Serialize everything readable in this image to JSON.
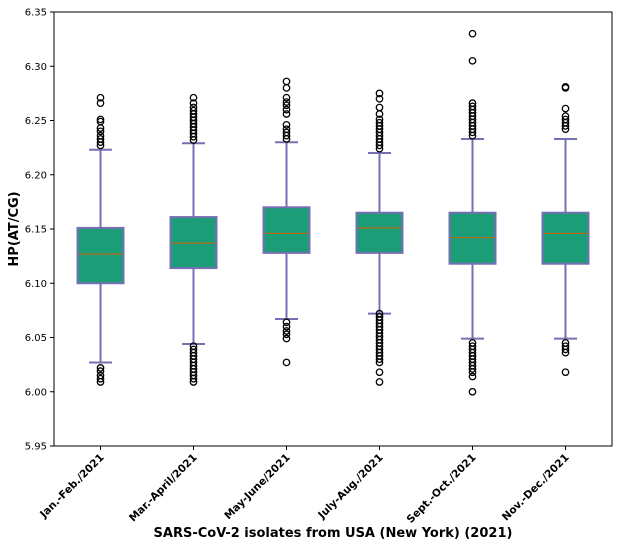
{
  "chart_data": {
    "type": "boxplot",
    "title": "",
    "xlabel": "SARS-CoV-2 isolates from USA (New York) (2021)",
    "ylabel": "HP(AT/CG)",
    "ylim": [
      5.95,
      6.35
    ],
    "yticks": [
      5.95,
      6.0,
      6.05,
      6.1,
      6.15,
      6.2,
      6.25,
      6.3,
      6.35
    ],
    "ytick_labels": [
      "5.95",
      "6.00",
      "6.05",
      "6.10",
      "6.15",
      "6.20",
      "6.25",
      "6.30",
      "6.35"
    ],
    "categories": [
      "Jan.-Feb./2021",
      "Mar.-April/2021",
      "May-June/2021",
      "July-Aug./2021",
      "Sept.-Oct./2021",
      "Nov.-Dec./2021"
    ],
    "boxes": [
      {
        "q1": 6.1,
        "median": 6.127,
        "q3": 6.151,
        "whisker_low": 6.027,
        "whisker_high": 6.223,
        "outliers": [
          6.009,
          6.012,
          6.015,
          6.019,
          6.022,
          6.227,
          6.23,
          6.233,
          6.236,
          6.24,
          6.243,
          6.249,
          6.251,
          6.266,
          6.271
        ]
      },
      {
        "q1": 6.114,
        "median": 6.137,
        "q3": 6.161,
        "whisker_low": 6.044,
        "whisker_high": 6.229,
        "outliers": [
          6.009,
          6.012,
          6.015,
          6.018,
          6.021,
          6.024,
          6.027,
          6.03,
          6.033,
          6.036,
          6.039,
          6.042,
          6.232,
          6.235,
          6.238,
          6.241,
          6.244,
          6.247,
          6.25,
          6.253,
          6.256,
          6.259,
          6.262,
          6.266,
          6.271
        ]
      },
      {
        "q1": 6.128,
        "median": 6.146,
        "q3": 6.17,
        "whisker_low": 6.067,
        "whisker_high": 6.23,
        "outliers": [
          6.027,
          6.049,
          6.053,
          6.056,
          6.06,
          6.064,
          6.233,
          6.236,
          6.239,
          6.242,
          6.246,
          6.256,
          6.26,
          6.264,
          6.267,
          6.271,
          6.28,
          6.286
        ]
      },
      {
        "q1": 6.128,
        "median": 6.151,
        "q3": 6.165,
        "whisker_low": 6.072,
        "whisker_high": 6.22,
        "outliers": [
          6.009,
          6.018,
          6.027,
          6.03,
          6.033,
          6.036,
          6.039,
          6.042,
          6.045,
          6.048,
          6.051,
          6.054,
          6.057,
          6.06,
          6.063,
          6.066,
          6.069,
          6.072,
          6.224,
          6.227,
          6.23,
          6.233,
          6.236,
          6.239,
          6.242,
          6.245,
          6.248,
          6.251,
          6.256,
          6.262,
          6.27,
          6.275
        ]
      },
      {
        "q1": 6.118,
        "median": 6.142,
        "q3": 6.165,
        "whisker_low": 6.049,
        "whisker_high": 6.233,
        "outliers": [
          6.0,
          6.014,
          6.018,
          6.021,
          6.024,
          6.027,
          6.03,
          6.033,
          6.036,
          6.039,
          6.042,
          6.045,
          6.236,
          6.239,
          6.242,
          6.245,
          6.248,
          6.251,
          6.254,
          6.257,
          6.26,
          6.263,
          6.266,
          6.305,
          6.33
        ]
      },
      {
        "q1": 6.118,
        "median": 6.146,
        "q3": 6.165,
        "whisker_low": 6.049,
        "whisker_high": 6.233,
        "outliers": [
          6.018,
          6.036,
          6.039,
          6.042,
          6.045,
          6.242,
          6.245,
          6.248,
          6.251,
          6.254,
          6.261,
          6.28,
          6.281
        ]
      }
    ],
    "colors": {
      "box_fill": "#1b9e77",
      "box_edge": "#7570b3",
      "whisker": "#7570b3",
      "median": "#d95f02",
      "outlier_edge": "#000000",
      "axis": "#000000"
    }
  }
}
